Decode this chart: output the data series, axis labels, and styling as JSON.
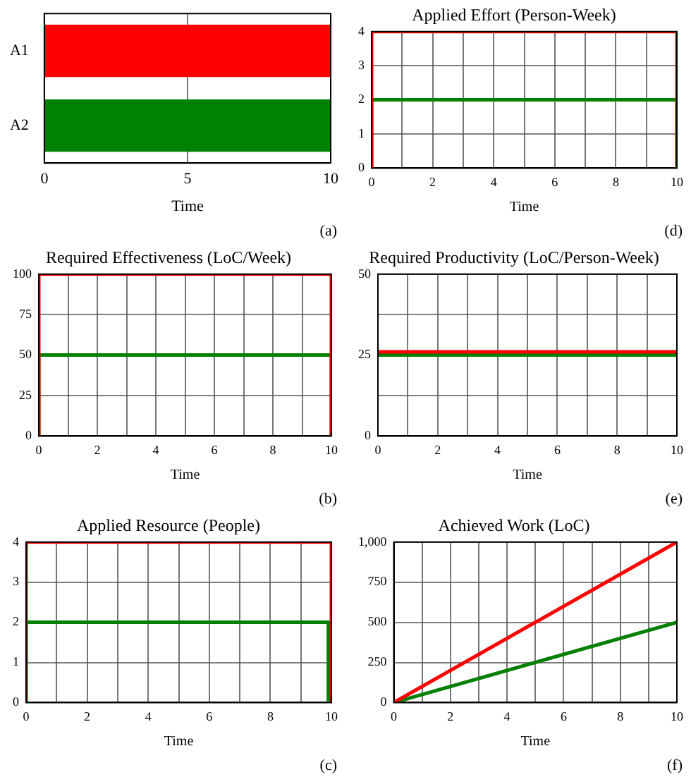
{
  "chart_data": [
    {
      "type": "bar",
      "orientation": "horizontal",
      "categories": [
        "A1",
        "A2"
      ],
      "values": [
        10,
        10
      ],
      "colors": [
        "#ff0000",
        "#008000"
      ],
      "xlabel": "Time",
      "xlim": [
        0,
        10
      ],
      "xticks": [
        0,
        5,
        10
      ],
      "grid": "x",
      "annotations": [
        "(a)"
      ]
    },
    {
      "type": "line",
      "title": "Applied Effort (Person-Week)",
      "xlabel": "Time",
      "marker": "none",
      "grid": true,
      "series": [
        {
          "color": "#ff0000",
          "x": [
            0,
            0,
            10,
            10
          ],
          "values": [
            0,
            4,
            4,
            0
          ]
        },
        {
          "color": "#008000",
          "x": [
            0,
            0,
            10,
            10
          ],
          "values": [
            0,
            2,
            2,
            0
          ]
        }
      ],
      "xlim": [
        0,
        10
      ],
      "xticks": [
        0,
        {
          "value": 1,
          "label": null
        },
        2,
        {
          "value": 3,
          "label": null
        },
        4,
        {
          "value": 5,
          "label": null
        },
        6,
        {
          "value": 7,
          "label": null
        },
        8,
        {
          "value": 9,
          "label": null
        },
        10
      ],
      "ylim": [
        0,
        4
      ],
      "yticks": [
        0,
        1,
        2,
        3,
        4
      ],
      "annotations": [
        "(d)"
      ]
    },
    {
      "type": "line",
      "title": "Required Effectiveness (LoC/Week)",
      "xlabel": "Time",
      "marker": "none",
      "grid": true,
      "series": [
        {
          "color": "#ff0000",
          "x": [
            0,
            0,
            10,
            10
          ],
          "values": [
            0,
            100,
            100,
            0
          ]
        },
        {
          "color": "#008000",
          "x": [
            0,
            0,
            10,
            10
          ],
          "values": [
            0,
            50,
            50,
            0
          ]
        }
      ],
      "xlim": [
        0,
        10
      ],
      "xticks": [
        0,
        {
          "value": 1,
          "label": null
        },
        2,
        {
          "value": 3,
          "label": null
        },
        4,
        {
          "value": 5,
          "label": null
        },
        6,
        {
          "value": 7,
          "label": null
        },
        8,
        {
          "value": 9,
          "label": null
        },
        10
      ],
      "ylim": [
        0,
        100
      ],
      "yticks": [
        0,
        25,
        50,
        75,
        100
      ],
      "annotations": [
        "(b)"
      ]
    },
    {
      "type": "line",
      "title": "Required Productivity (LoC/Person-Week)",
      "xlabel": "Time",
      "marker": "none",
      "grid": true,
      "series": [
        {
          "color": "#ff0000",
          "x": [
            0,
            10
          ],
          "values": [
            26,
            26
          ]
        },
        {
          "color": "#008000",
          "x": [
            0,
            10
          ],
          "values": [
            25,
            25
          ]
        }
      ],
      "xlim": [
        0,
        10
      ],
      "xticks": [
        0,
        {
          "value": 1,
          "label": null
        },
        2,
        {
          "value": 3,
          "label": null
        },
        4,
        {
          "value": 5,
          "label": null
        },
        6,
        {
          "value": 7,
          "label": null
        },
        8,
        {
          "value": 9,
          "label": null
        },
        10
      ],
      "ylim": [
        0,
        50
      ],
      "yticks": [
        0,
        {
          "value": 12.5,
          "label": null
        },
        25,
        {
          "value": 37.5,
          "label": null
        },
        50
      ],
      "annotations": [
        "(e)"
      ]
    },
    {
      "type": "line",
      "title": "Applied Resource (People)",
      "xlabel": "Time",
      "marker": "none",
      "grid": true,
      "series": [
        {
          "color": "#ff0000",
          "x": [
            0,
            0,
            10,
            10
          ],
          "values": [
            0,
            4,
            4,
            0
          ]
        },
        {
          "color": "#008000",
          "x": [
            0,
            0,
            9.9,
            9.9
          ],
          "values": [
            0,
            2,
            2,
            0
          ]
        }
      ],
      "xlim": [
        0,
        10
      ],
      "xticks": [
        0,
        {
          "value": 1,
          "label": null
        },
        2,
        {
          "value": 3,
          "label": null
        },
        4,
        {
          "value": 5,
          "label": null
        },
        6,
        {
          "value": 7,
          "label": null
        },
        8,
        {
          "value": 9,
          "label": null
        },
        10
      ],
      "ylim": [
        0,
        4
      ],
      "yticks": [
        0,
        1,
        2,
        3,
        4
      ],
      "annotations": [
        "(c)"
      ]
    },
    {
      "type": "line",
      "title": "Achieved Work (LoC)",
      "xlabel": "Time",
      "marker": "none",
      "grid": true,
      "series": [
        {
          "color": "#ff0000",
          "x": [
            0,
            10
          ],
          "values": [
            0,
            1000
          ]
        },
        {
          "color": "#008000",
          "x": [
            0,
            10
          ],
          "values": [
            0,
            500
          ]
        }
      ],
      "xlim": [
        0,
        10
      ],
      "xticks": [
        0,
        {
          "value": 1,
          "label": null
        },
        2,
        {
          "value": 3,
          "label": null
        },
        4,
        {
          "value": 5,
          "label": null
        },
        6,
        {
          "value": 7,
          "label": null
        },
        8,
        {
          "value": 9,
          "label": null
        },
        10
      ],
      "ylim": [
        0,
        1000
      ],
      "yticks": [
        0,
        250,
        500,
        750,
        {
          "value": 1000,
          "label": "1,000"
        }
      ],
      "annotations": [
        "(f)"
      ]
    }
  ]
}
